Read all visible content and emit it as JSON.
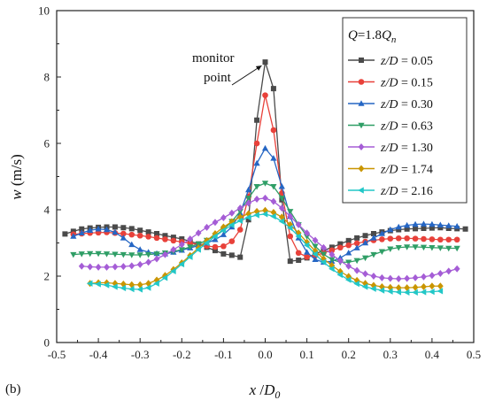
{
  "panel_label": "(b)",
  "chart_data": {
    "type": "line",
    "xlabel_main": "x",
    "xlabel_sep": " /",
    "xlabel_denom": "D",
    "xlabel_denom_sub": "0",
    "ylabel_main": "w",
    "ylabel_unit": " (m/s)",
    "xlim": [
      -0.5,
      0.5
    ],
    "ylim": [
      0,
      10
    ],
    "xticks": [
      -0.5,
      -0.4,
      -0.3,
      -0.2,
      -0.1,
      0.0,
      0.1,
      0.2,
      0.3,
      0.4,
      0.5
    ],
    "xtick_labels": [
      "-0.5",
      "-0.4",
      "-0.3",
      "-0.2",
      "-0.1",
      "0.0",
      "0.1",
      "0.2",
      "0.3",
      "0.4",
      "0.5"
    ],
    "yticks": [
      0,
      2,
      4,
      6,
      8,
      10
    ],
    "ytick_labels": [
      "0",
      "2",
      "4",
      "6",
      "8",
      "10"
    ],
    "grid": false,
    "legend_position": "top-right",
    "legend_title": {
      "q_var": "Q",
      "eq": "=1.8",
      "q_sub_var": "Q",
      "q_sub": "n"
    },
    "annotation": {
      "line1": "monitor",
      "line2": "point",
      "target": [
        0.0,
        8.45
      ]
    },
    "series": [
      {
        "name_var": "z/D",
        "name_val": " = 0.05",
        "color": "#4a4a4a",
        "marker": "square",
        "x": [
          -0.48,
          -0.46,
          -0.44,
          -0.42,
          -0.4,
          -0.38,
          -0.36,
          -0.34,
          -0.32,
          -0.3,
          -0.28,
          -0.26,
          -0.24,
          -0.22,
          -0.2,
          -0.18,
          -0.16,
          -0.14,
          -0.12,
          -0.1,
          -0.08,
          -0.06,
          -0.04,
          -0.02,
          0.0,
          0.02,
          0.04,
          0.06,
          0.08,
          0.1,
          0.12,
          0.14,
          0.16,
          0.18,
          0.2,
          0.22,
          0.24,
          0.26,
          0.28,
          0.3,
          0.32,
          0.34,
          0.36,
          0.38,
          0.4,
          0.42,
          0.44,
          0.46,
          0.48
        ],
        "y": [
          3.27,
          3.35,
          3.42,
          3.45,
          3.47,
          3.48,
          3.48,
          3.46,
          3.43,
          3.38,
          3.33,
          3.28,
          3.22,
          3.17,
          3.12,
          3.05,
          2.97,
          2.87,
          2.77,
          2.67,
          2.63,
          2.57,
          3.7,
          6.7,
          8.45,
          7.65,
          4.3,
          2.45,
          2.48,
          2.55,
          2.67,
          2.77,
          2.87,
          2.97,
          3.07,
          3.15,
          3.22,
          3.28,
          3.33,
          3.37,
          3.4,
          3.42,
          3.43,
          3.44,
          3.45,
          3.46,
          3.44,
          3.43,
          3.42
        ]
      },
      {
        "name_var": "z/D",
        "name_val": " = 0.15",
        "color": "#e8413a",
        "marker": "circle",
        "x": [
          -0.46,
          -0.44,
          -0.42,
          -0.4,
          -0.38,
          -0.36,
          -0.34,
          -0.32,
          -0.3,
          -0.28,
          -0.26,
          -0.24,
          -0.22,
          -0.2,
          -0.18,
          -0.16,
          -0.14,
          -0.12,
          -0.1,
          -0.08,
          -0.06,
          -0.04,
          -0.02,
          0.0,
          0.02,
          0.04,
          0.06,
          0.08,
          0.1,
          0.12,
          0.14,
          0.16,
          0.18,
          0.2,
          0.22,
          0.24,
          0.26,
          0.28,
          0.3,
          0.32,
          0.34,
          0.36,
          0.38,
          0.4,
          0.42,
          0.44,
          0.46
        ],
        "y": [
          3.26,
          3.28,
          3.3,
          3.31,
          3.32,
          3.3,
          3.28,
          3.25,
          3.22,
          3.19,
          3.15,
          3.11,
          3.07,
          3.03,
          2.99,
          2.95,
          2.91,
          2.88,
          2.9,
          3.05,
          3.4,
          4.4,
          6.0,
          7.45,
          6.4,
          4.5,
          3.2,
          2.7,
          2.58,
          2.62,
          2.7,
          2.78,
          2.86,
          2.93,
          2.99,
          3.04,
          3.08,
          3.11,
          3.13,
          3.14,
          3.14,
          3.13,
          3.12,
          3.11,
          3.1,
          3.1,
          3.1
        ]
      },
      {
        "name_var": "z/D",
        "name_val": " =  0.30",
        "color": "#2566c4",
        "marker": "triangle-up",
        "x": [
          -0.46,
          -0.44,
          -0.42,
          -0.4,
          -0.38,
          -0.36,
          -0.34,
          -0.32,
          -0.3,
          -0.28,
          -0.26,
          -0.24,
          -0.22,
          -0.2,
          -0.18,
          -0.16,
          -0.14,
          -0.12,
          -0.1,
          -0.08,
          -0.06,
          -0.04,
          -0.02,
          0.0,
          0.02,
          0.04,
          0.06,
          0.08,
          0.1,
          0.12,
          0.14,
          0.16,
          0.18,
          0.2,
          0.22,
          0.24,
          0.26,
          0.28,
          0.3,
          0.32,
          0.34,
          0.36,
          0.38,
          0.4,
          0.42,
          0.44,
          0.46
        ],
        "y": [
          3.2,
          3.3,
          3.38,
          3.42,
          3.4,
          3.32,
          3.15,
          2.95,
          2.8,
          2.72,
          2.68,
          2.67,
          2.72,
          2.78,
          2.85,
          2.92,
          3.0,
          3.1,
          3.25,
          3.48,
          3.9,
          4.6,
          5.4,
          5.85,
          5.55,
          4.7,
          3.8,
          3.15,
          2.72,
          2.5,
          2.42,
          2.45,
          2.55,
          2.7,
          2.85,
          3.0,
          3.15,
          3.28,
          3.4,
          3.48,
          3.53,
          3.56,
          3.57,
          3.56,
          3.54,
          3.52,
          3.5
        ]
      },
      {
        "name_var": "z/D",
        "name_val": " =  0.63",
        "color": "#2f9e66",
        "marker": "triangle-down",
        "x": [
          -0.46,
          -0.44,
          -0.42,
          -0.4,
          -0.38,
          -0.36,
          -0.34,
          -0.32,
          -0.3,
          -0.28,
          -0.26,
          -0.24,
          -0.22,
          -0.2,
          -0.18,
          -0.16,
          -0.14,
          -0.12,
          -0.1,
          -0.08,
          -0.06,
          -0.04,
          -0.02,
          0.0,
          0.02,
          0.04,
          0.06,
          0.08,
          0.1,
          0.12,
          0.14,
          0.16,
          0.18,
          0.2,
          0.22,
          0.24,
          0.26,
          0.28,
          0.3,
          0.32,
          0.34,
          0.36,
          0.38,
          0.4,
          0.42,
          0.44,
          0.46
        ],
        "y": [
          2.65,
          2.67,
          2.68,
          2.68,
          2.67,
          2.66,
          2.65,
          2.64,
          2.64,
          2.65,
          2.67,
          2.7,
          2.74,
          2.8,
          2.88,
          2.97,
          3.08,
          3.22,
          3.4,
          3.65,
          3.95,
          4.35,
          4.7,
          4.8,
          4.7,
          4.35,
          3.95,
          3.55,
          3.2,
          2.9,
          2.66,
          2.5,
          2.42,
          2.42,
          2.47,
          2.55,
          2.65,
          2.74,
          2.82,
          2.86,
          2.88,
          2.88,
          2.87,
          2.86,
          2.85,
          2.84,
          2.84
        ]
      },
      {
        "name_var": "z/D",
        "name_val": " =  1.30",
        "color": "#a55dd6",
        "marker": "diamond",
        "x": [
          -0.44,
          -0.42,
          -0.4,
          -0.38,
          -0.36,
          -0.34,
          -0.32,
          -0.3,
          -0.28,
          -0.26,
          -0.24,
          -0.22,
          -0.2,
          -0.18,
          -0.16,
          -0.14,
          -0.12,
          -0.1,
          -0.08,
          -0.06,
          -0.04,
          -0.02,
          0.0,
          0.02,
          0.04,
          0.06,
          0.08,
          0.1,
          0.12,
          0.14,
          0.16,
          0.18,
          0.2,
          0.22,
          0.24,
          0.26,
          0.28,
          0.3,
          0.32,
          0.34,
          0.36,
          0.38,
          0.4,
          0.42,
          0.44,
          0.46
        ],
        "y": [
          2.3,
          2.28,
          2.27,
          2.27,
          2.28,
          2.29,
          2.31,
          2.35,
          2.42,
          2.52,
          2.65,
          2.8,
          2.95,
          3.12,
          3.3,
          3.47,
          3.62,
          3.76,
          3.9,
          4.05,
          4.2,
          4.32,
          4.35,
          4.25,
          4.05,
          3.8,
          3.55,
          3.3,
          3.08,
          2.86,
          2.65,
          2.46,
          2.3,
          2.17,
          2.07,
          2.0,
          1.95,
          1.93,
          1.92,
          1.93,
          1.95,
          1.98,
          2.02,
          2.08,
          2.15,
          2.22
        ]
      },
      {
        "name_var": "z/D",
        "name_val": " =  1.74",
        "color": "#c99500",
        "marker": "diamond",
        "x": [
          -0.42,
          -0.4,
          -0.38,
          -0.36,
          -0.34,
          -0.32,
          -0.3,
          -0.28,
          -0.26,
          -0.24,
          -0.22,
          -0.2,
          -0.18,
          -0.16,
          -0.14,
          -0.12,
          -0.1,
          -0.08,
          -0.06,
          -0.04,
          -0.02,
          0.0,
          0.02,
          0.04,
          0.06,
          0.08,
          0.1,
          0.12,
          0.14,
          0.16,
          0.18,
          0.2,
          0.22,
          0.24,
          0.26,
          0.28,
          0.3,
          0.32,
          0.34,
          0.36,
          0.38,
          0.4,
          0.42
        ],
        "y": [
          1.78,
          1.8,
          1.8,
          1.78,
          1.76,
          1.74,
          1.74,
          1.78,
          1.88,
          2.02,
          2.2,
          2.4,
          2.62,
          2.85,
          3.07,
          3.28,
          3.48,
          3.64,
          3.78,
          3.88,
          3.95,
          3.98,
          3.92,
          3.78,
          3.55,
          3.3,
          3.02,
          2.76,
          2.52,
          2.32,
          2.14,
          1.99,
          1.87,
          1.78,
          1.72,
          1.68,
          1.66,
          1.65,
          1.65,
          1.66,
          1.68,
          1.7,
          1.7
        ]
      },
      {
        "name_var": "z/D",
        "name_val": " =  2.16",
        "color": "#22c7c7",
        "marker": "triangle-left",
        "x": [
          -0.42,
          -0.4,
          -0.38,
          -0.36,
          -0.34,
          -0.32,
          -0.3,
          -0.28,
          -0.26,
          -0.24,
          -0.22,
          -0.2,
          -0.18,
          -0.16,
          -0.14,
          -0.12,
          -0.1,
          -0.08,
          -0.06,
          -0.04,
          -0.02,
          0.0,
          0.02,
          0.04,
          0.06,
          0.08,
          0.1,
          0.12,
          0.14,
          0.16,
          0.18,
          0.2,
          0.22,
          0.24,
          0.26,
          0.28,
          0.3,
          0.32,
          0.34,
          0.36,
          0.38,
          0.4,
          0.42
        ],
        "y": [
          1.78,
          1.76,
          1.73,
          1.68,
          1.64,
          1.61,
          1.6,
          1.65,
          1.78,
          1.95,
          2.15,
          2.36,
          2.58,
          2.8,
          3.0,
          3.2,
          3.38,
          3.54,
          3.67,
          3.77,
          3.84,
          3.87,
          3.8,
          3.65,
          3.45,
          3.2,
          2.93,
          2.66,
          2.42,
          2.22,
          2.04,
          1.89,
          1.77,
          1.68,
          1.62,
          1.57,
          1.54,
          1.52,
          1.51,
          1.51,
          1.52,
          1.53,
          1.55
        ]
      }
    ]
  }
}
